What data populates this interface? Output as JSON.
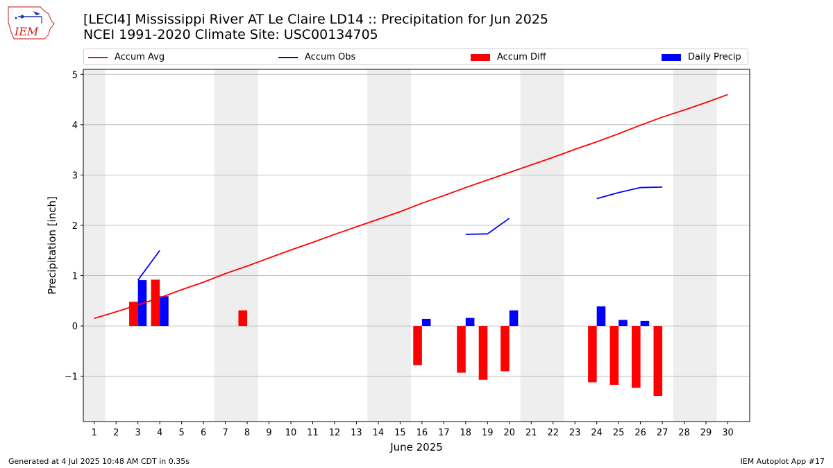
{
  "header": {
    "title_line1": "[LECI4] Mississippi River  AT Le Claire LD14 :: Precipitation for Jun 2025",
    "title_line2": "NCEI 1991-2020 Climate Site: USC00134705",
    "logo_text": "IEM"
  },
  "legend": {
    "items": [
      {
        "label": "Accum Avg",
        "color": "#ff0000",
        "kind": "line"
      },
      {
        "label": "Accum Obs",
        "color": "#0000ff",
        "kind": "line"
      },
      {
        "label": "Accum Diff",
        "color": "#ff0000",
        "kind": "patch"
      },
      {
        "label": "Daily Precip",
        "color": "#0000ff",
        "kind": "patch"
      }
    ]
  },
  "footer": {
    "left": "Generated at 4 Jul 2025 10:48 AM CDT in 0.35s",
    "right": "IEM Autoplot App #17"
  },
  "chart_data": {
    "type": "bar",
    "xlabel": "June 2025",
    "ylabel": "Precipitation [inch]",
    "xlim": [
      0.5,
      31
    ],
    "ylim": [
      -1.9,
      5.1
    ],
    "x_ticks": [
      1,
      2,
      3,
      4,
      5,
      6,
      7,
      8,
      9,
      10,
      11,
      12,
      13,
      14,
      15,
      16,
      17,
      18,
      19,
      20,
      21,
      22,
      23,
      24,
      25,
      26,
      27,
      28,
      29,
      30
    ],
    "y_ticks": [
      -1,
      0,
      1,
      2,
      3,
      4,
      5
    ],
    "y_tick_labels": [
      "−1",
      "0",
      "1",
      "2",
      "3",
      "4",
      "5"
    ],
    "grid": "horizontal",
    "weekend_shading": [
      [
        0.5,
        1.5
      ],
      [
        6.5,
        8.5
      ],
      [
        13.5,
        15.5
      ],
      [
        20.5,
        22.5
      ],
      [
        27.5,
        29.5
      ]
    ],
    "series": [
      {
        "name": "Accum Avg",
        "type": "line",
        "color": "#ff0000",
        "x": [
          1,
          2,
          3,
          4,
          5,
          6,
          7,
          8,
          9,
          10,
          11,
          12,
          13,
          14,
          15,
          16,
          17,
          18,
          19,
          20,
          21,
          22,
          23,
          24,
          25,
          26,
          27,
          28,
          29,
          30
        ],
        "y": [
          0.15,
          0.28,
          0.42,
          0.56,
          0.72,
          0.87,
          1.04,
          1.19,
          1.35,
          1.51,
          1.66,
          1.82,
          1.97,
          2.12,
          2.27,
          2.44,
          2.59,
          2.75,
          2.9,
          3.05,
          3.2,
          3.35,
          3.51,
          3.66,
          3.82,
          3.99,
          4.15,
          4.29,
          4.44,
          4.6
        ]
      },
      {
        "name": "Accum Obs",
        "type": "line",
        "color": "#0000ff",
        "segments": [
          {
            "x": [
              3,
              4
            ],
            "y": [
              0.91,
              1.5
            ]
          },
          {
            "x": [
              18,
              19,
              20
            ],
            "y": [
              1.82,
              1.83,
              2.14
            ]
          },
          {
            "x": [
              24,
              25,
              26,
              27
            ],
            "y": [
              2.53,
              2.65,
              2.75,
              2.76
            ]
          }
        ]
      },
      {
        "name": "Accum Diff",
        "type": "bar",
        "color": "#ff0000",
        "x": [
          3,
          4,
          8,
          16,
          18,
          19,
          20,
          24,
          25,
          26,
          27
        ],
        "values": [
          0.48,
          0.92,
          0.31,
          -0.78,
          -0.93,
          -1.07,
          -0.9,
          -1.12,
          -1.17,
          -1.23,
          -1.39
        ]
      },
      {
        "name": "Daily Precip",
        "type": "bar",
        "color": "#0000ff",
        "x": [
          3,
          4,
          16,
          18,
          20,
          24,
          25,
          26
        ],
        "values": [
          0.91,
          0.59,
          0.14,
          0.16,
          0.31,
          0.39,
          0.12,
          0.1
        ]
      }
    ]
  }
}
